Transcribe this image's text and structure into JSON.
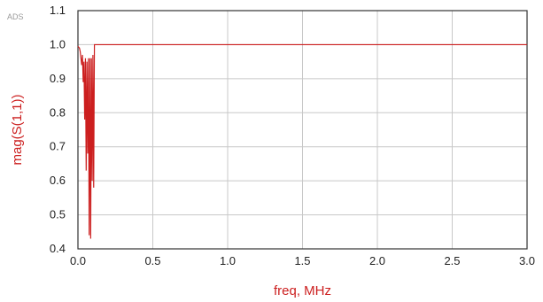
{
  "watermark": "ADS",
  "chart_data": {
    "type": "line",
    "xlabel": "freq, MHz",
    "ylabel": "mag(S(1,1))",
    "xlim": [
      0.0,
      3.0
    ],
    "ylim": [
      0.4,
      1.1
    ],
    "x_ticks": [
      "0.0",
      "0.5",
      "1.0",
      "1.5",
      "2.0",
      "2.5",
      "3.0"
    ],
    "y_ticks": [
      "0.4",
      "0.5",
      "0.6",
      "0.7",
      "0.8",
      "0.9",
      "1.0",
      "1.1"
    ],
    "grid": true,
    "colors": {
      "series": "#cc1f1f",
      "grid": "#c8c8c8",
      "frame": "#333333"
    },
    "series": [
      {
        "x": [
          0.0,
          0.01,
          0.015,
          0.02,
          0.025,
          0.03,
          0.035,
          0.04,
          0.045,
          0.05,
          0.055,
          0.06,
          0.065,
          0.07,
          0.075,
          0.08,
          0.085,
          0.09,
          0.095,
          0.1,
          0.105,
          0.11,
          0.12,
          0.2,
          1.0,
          2.0,
          3.0
        ],
        "y": [
          0.995,
          0.99,
          0.98,
          0.96,
          0.94,
          0.97,
          0.89,
          0.95,
          0.78,
          0.96,
          0.63,
          0.95,
          0.68,
          0.96,
          0.44,
          0.96,
          0.43,
          0.96,
          0.6,
          0.97,
          0.58,
          1.0,
          1.0,
          1.0,
          1.0,
          1.0,
          1.0
        ]
      }
    ]
  }
}
